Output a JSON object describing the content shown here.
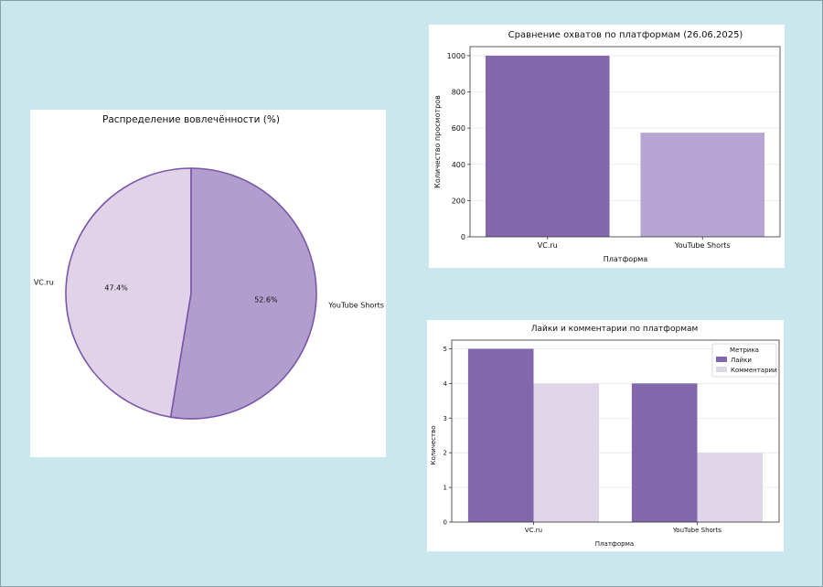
{
  "chart_data": [
    {
      "type": "pie",
      "title": "Распределение вовлечённости (%)",
      "labels": [
        "VC.ru",
        "YouTube Shorts"
      ],
      "values": [
        47.4,
        52.6
      ],
      "pct_labels": [
        "47.4%",
        "52.6%"
      ],
      "colors": [
        "#e0d3e9",
        "#b29ece"
      ],
      "edge_color": "#7b56a8"
    },
    {
      "type": "bar",
      "title": "Сравнение охватов по платформам (26.06.2025)",
      "xlabel": "Платформа",
      "ylabel": "Количество просмотров",
      "categories": [
        "VC.ru",
        "YouTube Shorts"
      ],
      "values": [
        1000,
        575
      ],
      "colors": [
        "#8367ad",
        "#b9a5d3"
      ],
      "ylim": [
        0,
        1050
      ],
      "yticks": [
        0,
        200,
        400,
        600,
        800,
        1000
      ],
      "grid": true
    },
    {
      "type": "bar",
      "title": "Лайки и комментарии по платформам",
      "xlabel": "Платформа",
      "ylabel": "Количество",
      "categories": [
        "VC.ru",
        "YouTube Shorts"
      ],
      "series": [
        {
          "name": "Лайки",
          "values": [
            5,
            4
          ],
          "color": "#8367ad"
        },
        {
          "name": "Комментарии",
          "values": [
            4,
            2
          ],
          "color": "#e0d6ea"
        }
      ],
      "legend_title": "Метрика",
      "legend_position": "top-right",
      "ylim": [
        0,
        5.25
      ],
      "yticks": [
        0,
        1,
        2,
        3,
        4,
        5
      ],
      "grid": true
    }
  ]
}
